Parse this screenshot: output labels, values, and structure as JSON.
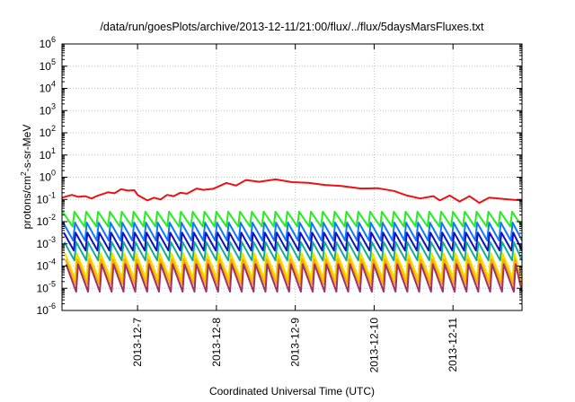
{
  "chart_data": {
    "type": "line",
    "title": "/data/run/goesPlots/archive/2013-12-11/21:00/flux/../flux/5daysMarsFluxes.txt",
    "xlabel": "Coordinated Universal Time (UTC)",
    "ylabel": {
      "main": "protons/cm",
      "sup": "2",
      "rest": "-s-sr-MeV"
    },
    "yscale": "log",
    "ylim": [
      1e-06,
      1000000.0
    ],
    "xlim": [
      "2013-12-06T01:00",
      "2013-12-11T21:00"
    ],
    "grid": true,
    "legend": "none",
    "y_ticks": [
      {
        "base": "10",
        "exp": "-6",
        "value": 1e-06
      },
      {
        "base": "10",
        "exp": "-5",
        "value": 1e-05
      },
      {
        "base": "10",
        "exp": "-4",
        "value": 0.0001
      },
      {
        "base": "10",
        "exp": "-3",
        "value": 0.001
      },
      {
        "base": "10",
        "exp": "-2",
        "value": 0.01
      },
      {
        "base": "10",
        "exp": "-1",
        "value": 0.1
      },
      {
        "base": "10",
        "exp": "0",
        "value": 1
      },
      {
        "base": "10",
        "exp": "1",
        "value": 10
      },
      {
        "base": "10",
        "exp": "2",
        "value": 100
      },
      {
        "base": "10",
        "exp": "3",
        "value": 1000
      },
      {
        "base": "10",
        "exp": "4",
        "value": 10000
      },
      {
        "base": "10",
        "exp": "5",
        "value": 100000
      },
      {
        "base": "10",
        "exp": "6",
        "value": 1000000
      }
    ],
    "x_ticks": [
      {
        "label": "2013-12-7",
        "value": "2013-12-07T00:00"
      },
      {
        "label": "2013-12-8",
        "value": "2013-12-08T00:00"
      },
      {
        "label": "2013-12-9",
        "value": "2013-12-09T00:00"
      },
      {
        "label": "2013-12-10",
        "value": "2013-12-10T00:00"
      },
      {
        "label": "2013-12-11",
        "value": "2013-12-11T00:00"
      }
    ],
    "sawtooth_period_hours": 3.6,
    "series": [
      {
        "color": "#ee1111",
        "sawtooth": false,
        "x": [
          "2013-12-06T01:00",
          "2013-12-06T04:00",
          "2013-12-06T06:00",
          "2013-12-06T08:00",
          "2013-12-06T10:00",
          "2013-12-06T12:00",
          "2013-12-06T15:00",
          "2013-12-06T17:00",
          "2013-12-06T19:00",
          "2013-12-06T21:00",
          "2013-12-06T23:00",
          "2013-12-07T00:00",
          "2013-12-07T03:00",
          "2013-12-07T05:00",
          "2013-12-07T07:00",
          "2013-12-07T09:00",
          "2013-12-07T11:00",
          "2013-12-07T13:00",
          "2013-12-07T15:00",
          "2013-12-07T18:00",
          "2013-12-07T20:00",
          "2013-12-07T23:00",
          "2013-12-08T03:00",
          "2013-12-08T06:00",
          "2013-12-08T09:00",
          "2013-12-08T13:00",
          "2013-12-08T18:00",
          "2013-12-08T23:00",
          "2013-12-09T04:00",
          "2013-12-09T09:00",
          "2013-12-09T14:00",
          "2013-12-09T20:00",
          "2013-12-10T01:00",
          "2013-12-10T06:00",
          "2013-12-10T10:00",
          "2013-12-10T14:00",
          "2013-12-10T18:00",
          "2013-12-10T20:00",
          "2013-12-10T23:00",
          "2013-12-11T02:00",
          "2013-12-11T05:00",
          "2013-12-11T08:00",
          "2013-12-11T11:00",
          "2013-12-11T14:00",
          "2013-12-11T17:00",
          "2013-12-11T21:00"
        ],
        "values": [
          0.12,
          0.16,
          0.13,
          0.14,
          0.11,
          0.15,
          0.21,
          0.19,
          0.29,
          0.25,
          0.26,
          0.16,
          0.09,
          0.12,
          0.1,
          0.16,
          0.14,
          0.2,
          0.18,
          0.31,
          0.27,
          0.3,
          0.55,
          0.42,
          0.75,
          0.62,
          0.8,
          0.6,
          0.56,
          0.45,
          0.4,
          0.31,
          0.32,
          0.24,
          0.15,
          0.11,
          0.14,
          0.09,
          0.15,
          0.08,
          0.14,
          0.07,
          0.12,
          0.11,
          0.1,
          0.09
        ]
      },
      {
        "color": "#22ee22",
        "sawtooth": true,
        "high": 0.028,
        "low": 0.006
      },
      {
        "color": "#1177ff",
        "sawtooth": true,
        "high": 0.009,
        "low": 0.0014
      },
      {
        "color": "#1111bb",
        "sawtooth": true,
        "high": 0.0032,
        "low": 0.0005
      },
      {
        "color": "#11aa99",
        "sawtooth": true,
        "high": 0.0012,
        "low": 0.00018
      },
      {
        "color": "#f0e000",
        "sawtooth": true,
        "high": 0.00038,
        "low": 2.8e-05
      },
      {
        "color": "#ffaa00",
        "sawtooth": true,
        "high": 0.0002,
        "low": 1.5e-05
      },
      {
        "color": "#a03366",
        "sawtooth": true,
        "high": 0.00012,
        "low": 7e-06
      }
    ]
  }
}
